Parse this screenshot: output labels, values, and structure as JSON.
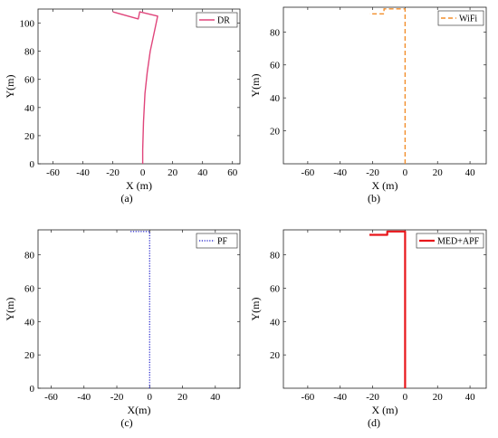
{
  "chart_data": [
    {
      "type": "line",
      "caption": "(a)",
      "xlabel": "X (m)",
      "ylabel": "Y(m)",
      "xlim": [
        -70,
        65
      ],
      "ylim": [
        0,
        110
      ],
      "xticks": [
        -60,
        -40,
        -20,
        0,
        20,
        40,
        60
      ],
      "yticks": [
        0,
        20,
        40,
        60,
        80,
        100
      ],
      "grid": false,
      "legend_position": "top-right",
      "series": [
        {
          "name": "DR",
          "color": "#e0457b",
          "style": "solid",
          "x": [
            0,
            0,
            0.5,
            1.5,
            3,
            5,
            7,
            9,
            10,
            -2,
            -3,
            -20
          ],
          "y": [
            0,
            10,
            30,
            50,
            65,
            80,
            90,
            100,
            105,
            108,
            103,
            108
          ]
        }
      ]
    },
    {
      "type": "line",
      "caption": "(b)",
      "xlabel": "X (m)",
      "ylabel": "Y(m)",
      "xlim": [
        -75,
        50
      ],
      "ylim": [
        0,
        95
      ],
      "xticks": [
        -60,
        -40,
        -20,
        0,
        20,
        40
      ],
      "yticks": [
        20,
        40,
        60,
        80
      ],
      "grid": false,
      "legend_position": "top-right",
      "series": [
        {
          "name": "WiFi",
          "color": "#f28e2b",
          "style": "dashed",
          "x": [
            0,
            0,
            -1,
            -13,
            -13,
            -18,
            -22
          ],
          "y": [
            0,
            94,
            94,
            94,
            91,
            91,
            91
          ]
        }
      ]
    },
    {
      "type": "line",
      "caption": "(c)",
      "xlabel": "X(m)",
      "ylabel": "Y(m)",
      "xlim": [
        -68,
        55
      ],
      "ylim": [
        0,
        95
      ],
      "xticks": [
        -60,
        -40,
        -20,
        0,
        20,
        40
      ],
      "yticks": [
        0,
        20,
        40,
        60,
        80
      ],
      "grid": false,
      "legend_position": "top-right",
      "series": [
        {
          "name": "PF",
          "color": "#3a3ad1",
          "style": "dotted",
          "x": [
            0,
            0,
            -1,
            -6,
            -12
          ],
          "y": [
            0,
            94,
            94,
            94,
            94
          ]
        }
      ]
    },
    {
      "type": "line",
      "caption": "(d)",
      "xlabel": "X (m)",
      "ylabel": "Y(m)",
      "xlim": [
        -75,
        50
      ],
      "ylim": [
        0,
        95
      ],
      "xticks": [
        -60,
        -40,
        -20,
        0,
        20,
        40
      ],
      "yticks": [
        20,
        40,
        60,
        80
      ],
      "grid": false,
      "legend_position": "top-right",
      "series": [
        {
          "name": "MED+APF",
          "color": "#e8161b",
          "style": "solid",
          "x": [
            0,
            0,
            -11,
            -11,
            -22
          ],
          "y": [
            0,
            94,
            94,
            92,
            92
          ]
        }
      ]
    }
  ]
}
